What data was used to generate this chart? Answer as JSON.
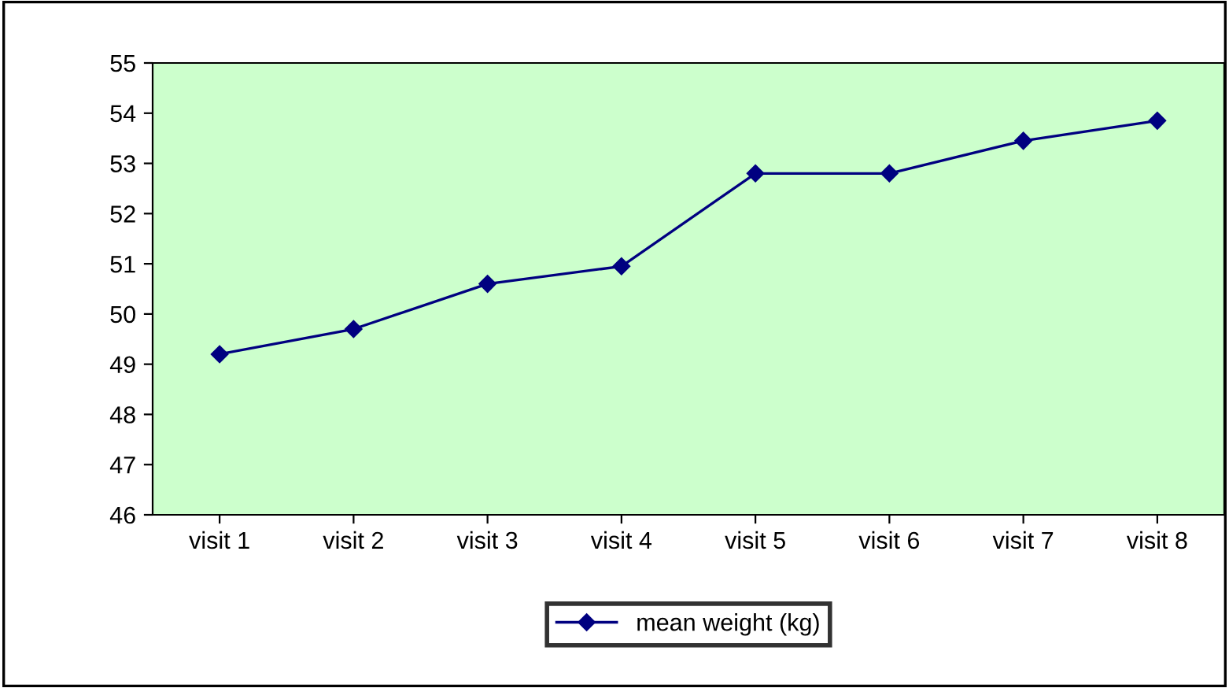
{
  "chart_data": {
    "type": "line",
    "categories": [
      "visit 1",
      "visit 2",
      "visit 3",
      "visit 4",
      "visit 5",
      "visit 6",
      "visit 7",
      "visit 8"
    ],
    "series": [
      {
        "name": "mean weight (kg)",
        "color": "#000080",
        "values": [
          49.2,
          49.7,
          50.6,
          50.95,
          52.8,
          52.8,
          53.45,
          53.85
        ]
      }
    ],
    "ylim": [
      46,
      55
    ],
    "yticks": [
      46,
      47,
      48,
      49,
      50,
      51,
      52,
      53,
      54,
      55
    ],
    "grid": false,
    "legend": "bottom",
    "marker": "diamond",
    "line_style": "solid"
  }
}
